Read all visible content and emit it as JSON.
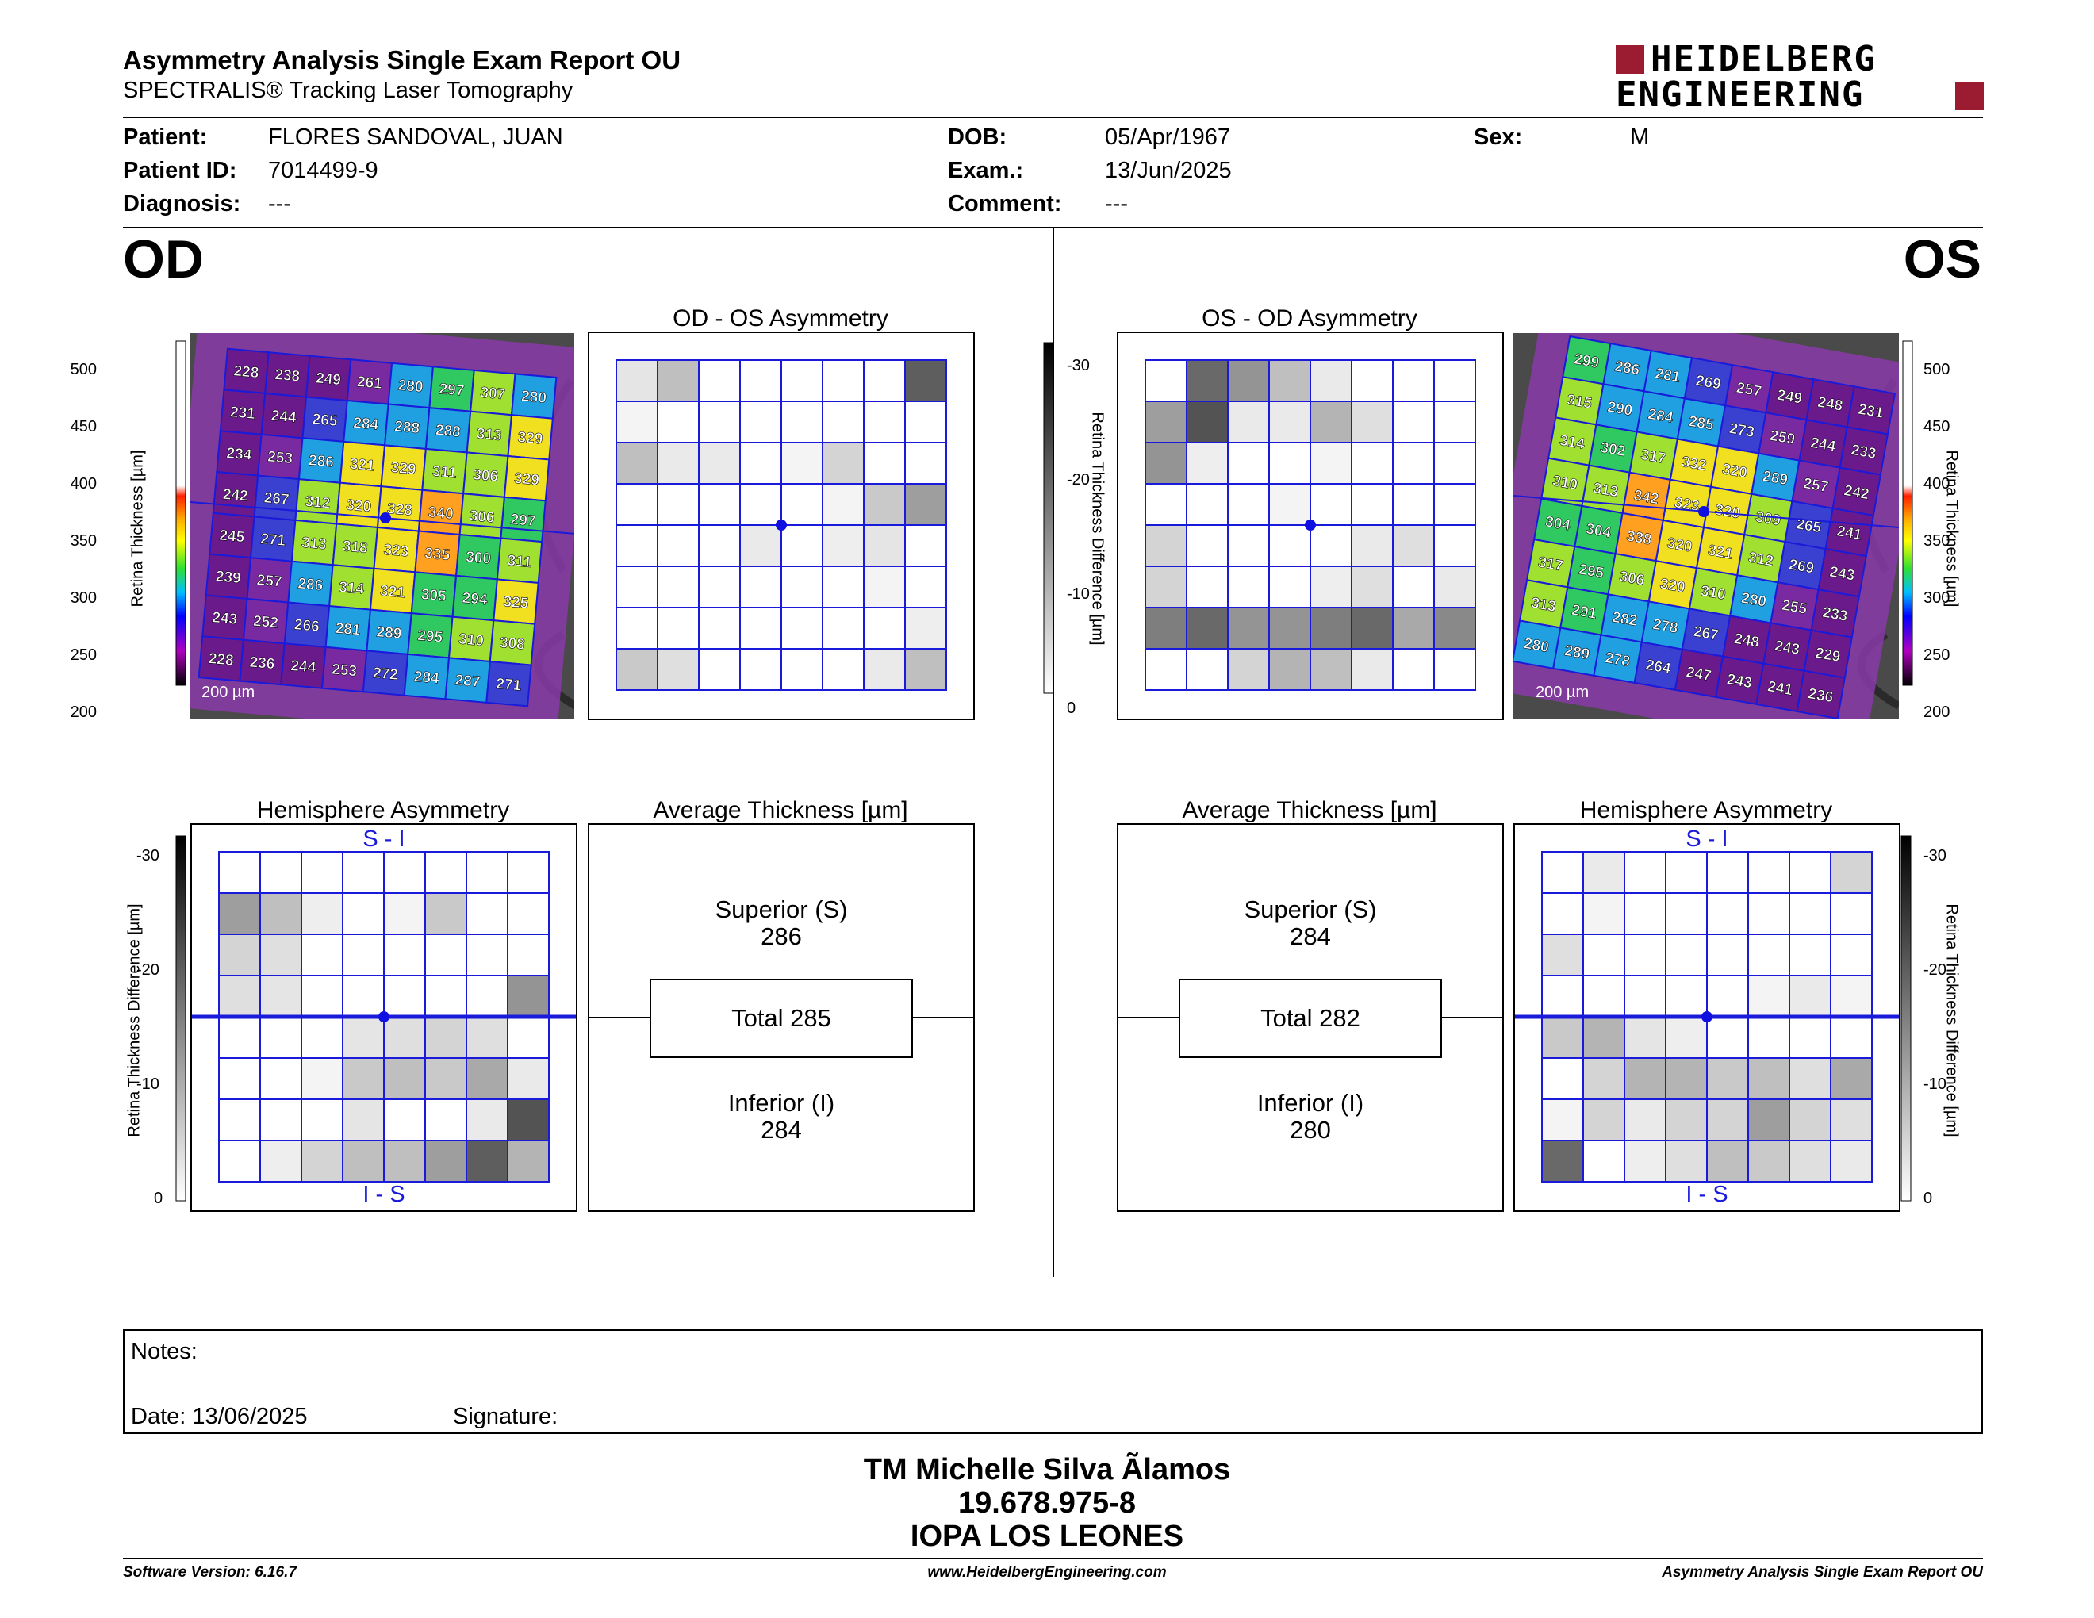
{
  "header": {
    "title": "Asymmetry Analysis Single Exam Report OU",
    "subtitle": "SPECTRALIS® Tracking Laser Tomography",
    "logo_line1": "HEIDELBERG",
    "logo_line2": "ENGINEERING",
    "brand_color": "#9b1c31"
  },
  "patient": {
    "patient_label": "Patient:",
    "patient_value": "FLORES SANDOVAL, JUAN",
    "id_label": "Patient ID:",
    "id_value": "7014499-9",
    "diag_label": "Diagnosis:",
    "diag_value": "---",
    "dob_label": "DOB:",
    "dob_value": "05/Apr/1967",
    "exam_label": "Exam.:",
    "exam_value": "13/Jun/2025",
    "comment_label": "Comment:",
    "comment_value": "---",
    "sex_label": "Sex:",
    "sex_value": "M"
  },
  "eyes": {
    "od": "OD",
    "os": "OS"
  },
  "scale_thickness": {
    "label": "Retina Thickness [µm]",
    "ticks": [
      "500",
      "450",
      "400",
      "350",
      "300",
      "250",
      "200"
    ]
  },
  "scale_diff": {
    "label": "Retina Thickness Difference [µm]",
    "ticks": [
      "-30",
      "-20",
      "-10",
      "0"
    ]
  },
  "od": {
    "scale_bar": "200 µm",
    "asym_title": "OD - OS Asymmetry",
    "hemi_title": "Hemisphere Asymmetry",
    "hemi_top": "S - I",
    "hemi_bottom": "I - S",
    "avg_title": "Average Thickness [µm]",
    "superior_label": "Superior (S)",
    "superior_value": "286",
    "total_label": "Total 285",
    "inferior_label": "Inferior (I)",
    "inferior_value": "284",
    "thickness_grid": [
      [
        "228",
        "238",
        "249",
        "261",
        "280",
        "297",
        "307",
        "280"
      ],
      [
        "231",
        "244",
        "265",
        "284",
        "288",
        "288",
        "313",
        "329"
      ],
      [
        "234",
        "253",
        "286",
        "321",
        "329",
        "311",
        "306",
        "329"
      ],
      [
        "242",
        "267",
        "312",
        "320",
        "328",
        "340",
        "306",
        "297"
      ],
      [
        "245",
        "271",
        "313",
        "318",
        "323",
        "335",
        "300",
        "311"
      ],
      [
        "239",
        "257",
        "286",
        "314",
        "321",
        "305",
        "294",
        "325"
      ],
      [
        "243",
        "252",
        "266",
        "281",
        "289",
        "295",
        "310",
        "308"
      ],
      [
        "228",
        "236",
        "244",
        "253",
        "272",
        "284",
        "287",
        "271"
      ]
    ],
    "asym_levels": [
      [
        0.12,
        0.3,
        0,
        0,
        0,
        0,
        0,
        0.75
      ],
      [
        0.05,
        0,
        0,
        0,
        0,
        0,
        0,
        0
      ],
      [
        0.3,
        0.1,
        0.1,
        0,
        0.05,
        0.2,
        0,
        0
      ],
      [
        0,
        0,
        0,
        0,
        0,
        0.05,
        0.25,
        0.45
      ],
      [
        0,
        0,
        0,
        0.1,
        0,
        0.08,
        0.12,
        0
      ],
      [
        0,
        0,
        0,
        0,
        0,
        0,
        0.05,
        0
      ],
      [
        0,
        0,
        0,
        0,
        0,
        0,
        0,
        0.08
      ],
      [
        0.25,
        0.15,
        0,
        0,
        0,
        0,
        0.1,
        0.3
      ]
    ],
    "hemi_levels": [
      [
        0,
        0,
        0,
        0,
        0,
        0,
        0,
        0
      ],
      [
        0.45,
        0.3,
        0.08,
        0,
        0.05,
        0.25,
        0,
        0
      ],
      [
        0.2,
        0.15,
        0,
        0,
        0,
        0,
        0,
        0
      ],
      [
        0.15,
        0.12,
        0,
        0,
        0,
        0,
        0,
        0.5
      ],
      [
        0,
        0,
        0,
        0.12,
        0.15,
        0.2,
        0.15,
        0
      ],
      [
        0,
        0,
        0.05,
        0.25,
        0.3,
        0.25,
        0.4,
        0.1
      ],
      [
        0,
        0,
        0,
        0.12,
        0,
        0,
        0.1,
        0.8
      ],
      [
        0,
        0.08,
        0.2,
        0.3,
        0.3,
        0.45,
        0.75,
        0.35
      ]
    ]
  },
  "os": {
    "scale_bar": "200 µm",
    "asym_title": "OS - OD Asymmetry",
    "hemi_title": "Hemisphere Asymmetry",
    "hemi_top": "S - I",
    "hemi_bottom": "I - S",
    "avg_title": "Average Thickness [µm]",
    "superior_label": "Superior (S)",
    "superior_value": "284",
    "total_label": "Total 282",
    "inferior_label": "Inferior (I)",
    "inferior_value": "280",
    "thickness_grid": [
      [
        "299",
        "286",
        "281",
        "269",
        "257",
        "249",
        "248",
        "231"
      ],
      [
        "315",
        "290",
        "284",
        "285",
        "273",
        "259",
        "244",
        "233"
      ],
      [
        "314",
        "302",
        "317",
        "332",
        "320",
        "289",
        "257",
        "242"
      ],
      [
        "310",
        "313",
        "342",
        "323",
        "320",
        "309",
        "265",
        "241"
      ],
      [
        "304",
        "304",
        "338",
        "320",
        "321",
        "312",
        "269",
        "243"
      ],
      [
        "317",
        "295",
        "306",
        "320",
        "310",
        "280",
        "255",
        "233"
      ],
      [
        "313",
        "291",
        "282",
        "278",
        "267",
        "248",
        "243",
        "229"
      ],
      [
        "280",
        "289",
        "278",
        "264",
        "247",
        "243",
        "241",
        "236"
      ]
    ],
    "asym_levels": [
      [
        0,
        0.7,
        0.5,
        0.3,
        0.1,
        0,
        0,
        0
      ],
      [
        0.45,
        0.8,
        0.1,
        0.1,
        0.35,
        0.15,
        0,
        0
      ],
      [
        0.5,
        0.08,
        0,
        0,
        0.05,
        0,
        0,
        0
      ],
      [
        0,
        0,
        0,
        0.05,
        0,
        0,
        0,
        0
      ],
      [
        0.2,
        0,
        0,
        0,
        0,
        0.1,
        0.15,
        0
      ],
      [
        0.2,
        0,
        0,
        0,
        0.08,
        0.15,
        0,
        0.1
      ],
      [
        0.6,
        0.7,
        0.5,
        0.5,
        0.6,
        0.7,
        0.4,
        0.55
      ],
      [
        0,
        0,
        0.2,
        0.35,
        0.3,
        0.1,
        0,
        0
      ]
    ],
    "hemi_levels": [
      [
        0,
        0.1,
        0,
        0,
        0,
        0,
        0,
        0.2
      ],
      [
        0,
        0.05,
        0,
        0,
        0,
        0,
        0,
        0
      ],
      [
        0.15,
        0,
        0,
        0,
        0,
        0,
        0,
        0
      ],
      [
        0,
        0,
        0,
        0,
        0,
        0.05,
        0.1,
        0.05
      ],
      [
        0.25,
        0.35,
        0.12,
        0.08,
        0,
        0,
        0,
        0
      ],
      [
        0,
        0.2,
        0.35,
        0.35,
        0.25,
        0.3,
        0.15,
        0.4
      ],
      [
        0.05,
        0.2,
        0.1,
        0.2,
        0.2,
        0.45,
        0.2,
        0.15
      ],
      [
        0.7,
        0,
        0.08,
        0.15,
        0.3,
        0.25,
        0.15,
        0.1
      ]
    ]
  },
  "notes": {
    "notes_label": "Notes:",
    "date_label": "Date: 13/06/2025",
    "signature_label": "Signature:"
  },
  "signer": {
    "name": "TM Michelle Silva Ãlamos",
    "rut": "19.678.975-8",
    "institution": "IOPA LOS LEONES"
  },
  "footer": {
    "software": "Software Version: 6.16.7",
    "website": "www.HeidelbergEngineering.com",
    "report": "Asymmetry Analysis Single Exam Report OU"
  },
  "colors": {
    "grid_blue": "#1a1adb",
    "fovea": "#1010e0"
  }
}
